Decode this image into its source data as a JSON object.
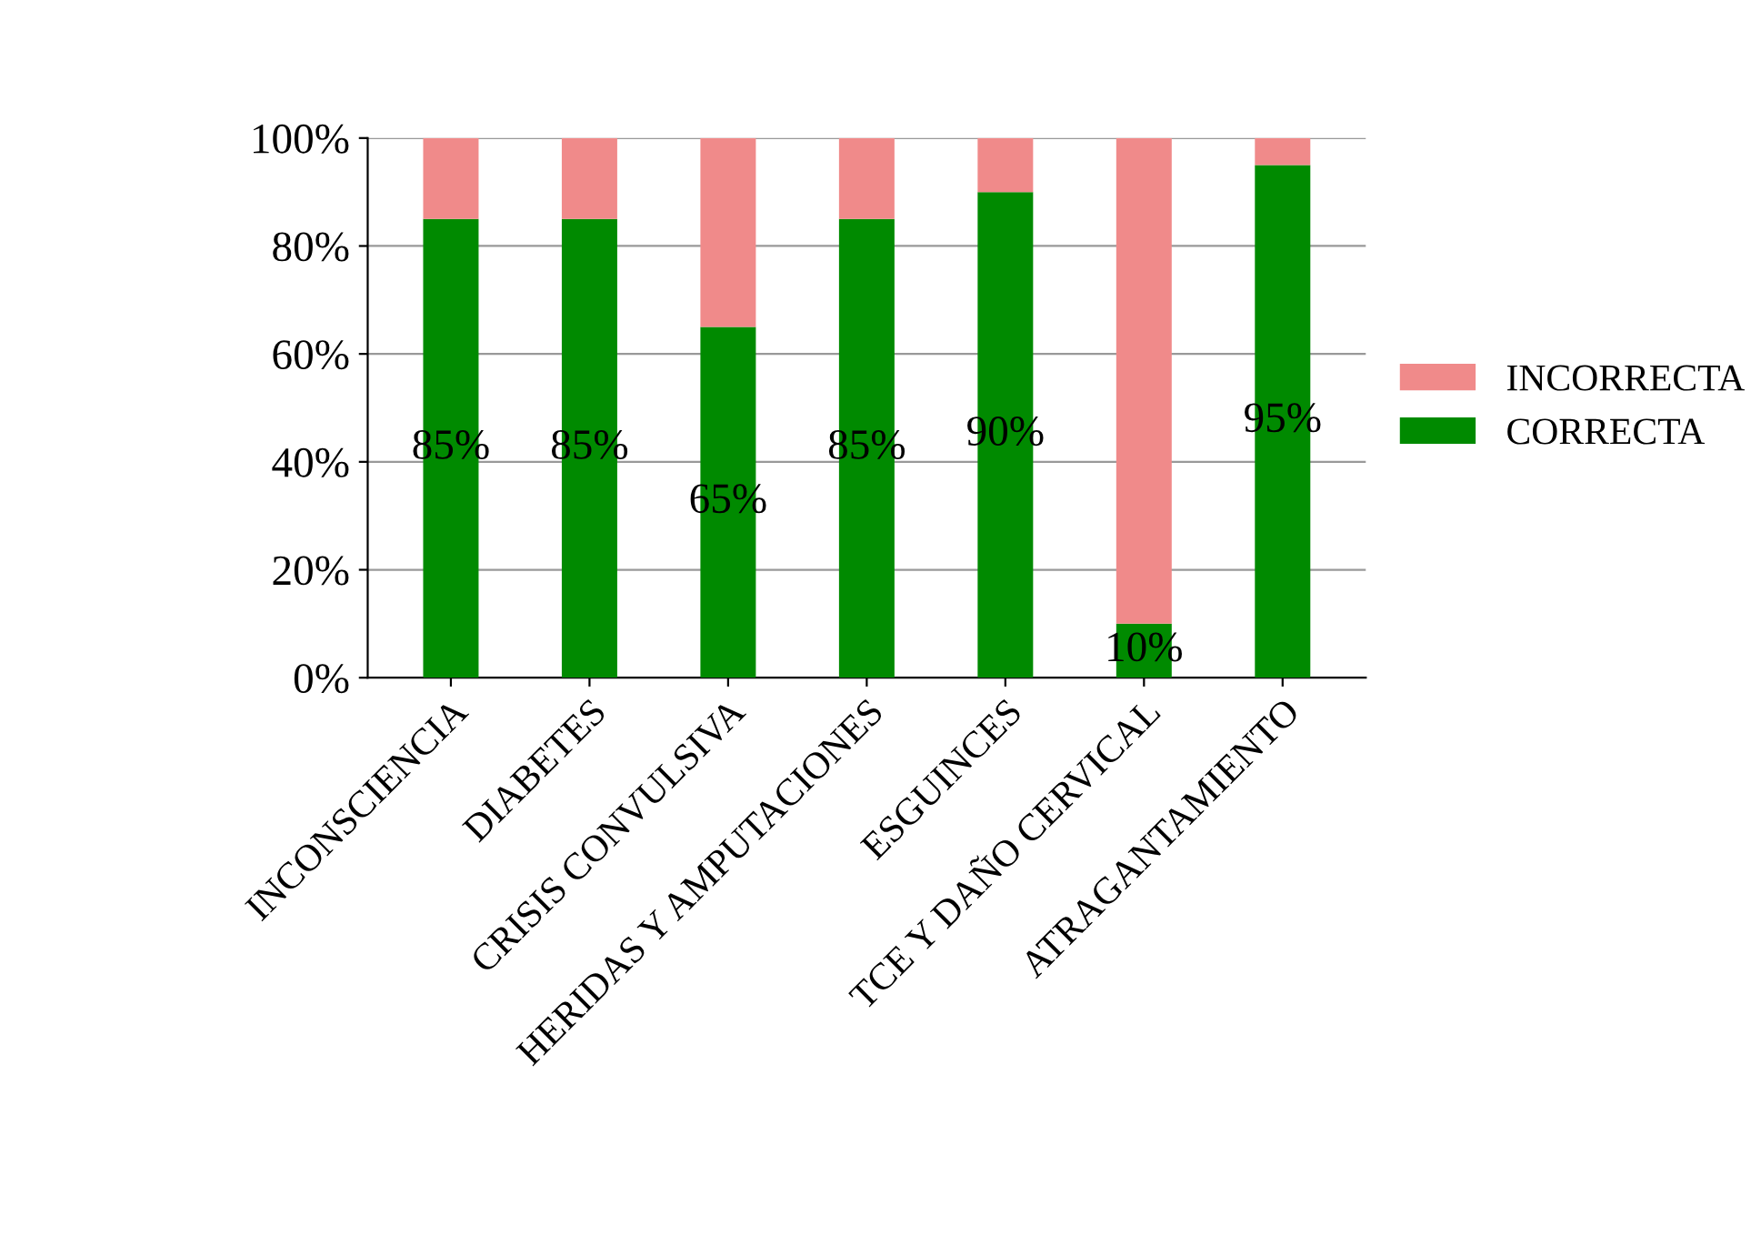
{
  "chart_data": {
    "type": "bar",
    "stacked": true,
    "categories": [
      "INCONSCIENCIA",
      "DIABETES",
      "CRISIS CONVULSIVA",
      "HERIDAS Y AMPUTACIONES",
      "ESGUINCES",
      "TCE Y DAÑO CERVICAL",
      "ATRAGANTAMIENTO"
    ],
    "series": [
      {
        "name": "CORRECTA",
        "color": "#008a00",
        "values": [
          85,
          85,
          65,
          85,
          90,
          10,
          95
        ],
        "value_labels": [
          "85%",
          "85%",
          "65%",
          "85%",
          "90%",
          "10%",
          "95%"
        ]
      },
      {
        "name": "INCORRECTA",
        "color": "#f08a8a",
        "values": [
          15,
          15,
          35,
          15,
          10,
          90,
          5
        ]
      }
    ],
    "ylim": [
      0,
      100
    ],
    "yticks": [
      {
        "value": 0,
        "label": "0%"
      },
      {
        "value": 20,
        "label": "20%"
      },
      {
        "value": 40,
        "label": "40%"
      },
      {
        "value": 60,
        "label": "60%"
      },
      {
        "value": 80,
        "label": "80%"
      },
      {
        "value": 100,
        "label": "100%"
      }
    ],
    "grid": "y",
    "legend": "right"
  }
}
